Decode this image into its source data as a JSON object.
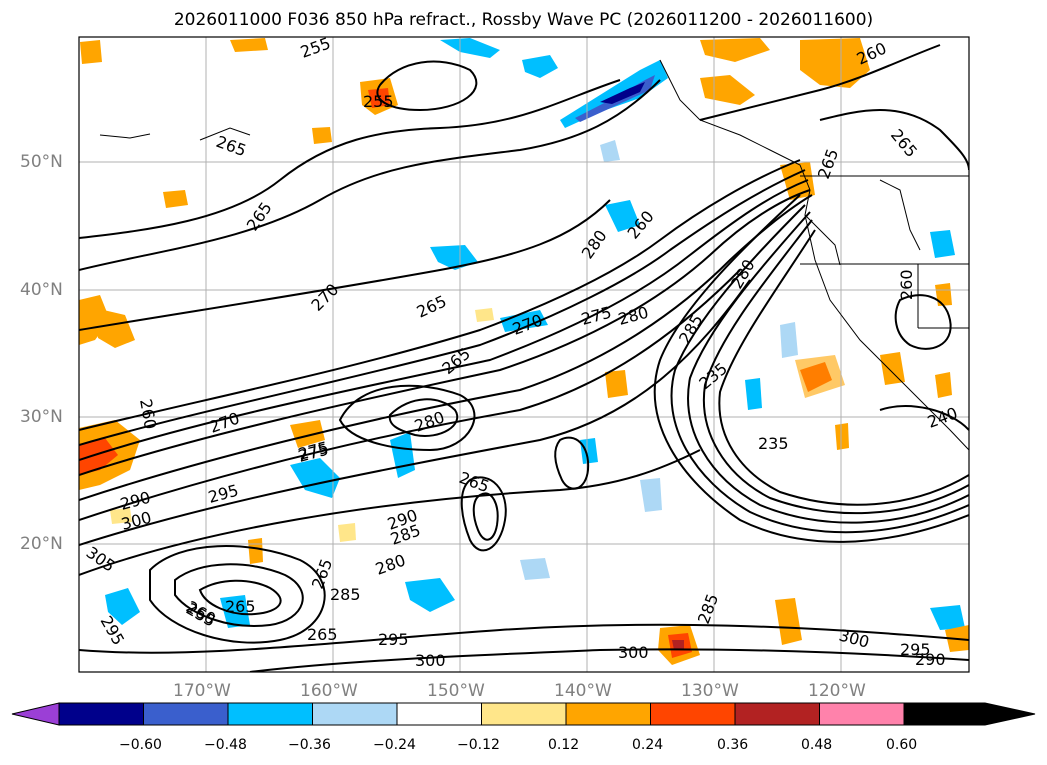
{
  "title": "2026011000 F036 850 hPa refract., Rossby Wave PC (2026011200 - 2026011600)",
  "lat_labels": [
    "50°N",
    "40°N",
    "30°N",
    "20°N"
  ],
  "lon_labels": [
    "170°W",
    "160°W",
    "150°W",
    "140°W",
    "130°W",
    "120°W"
  ],
  "colorbar": {
    "ticks": [
      "−0.60",
      "−0.48",
      "−0.36",
      "−0.24",
      "−0.12",
      "0.12",
      "0.24",
      "0.36",
      "0.48",
      "0.60"
    ],
    "colors": [
      "#9b3fd6",
      "#00008b",
      "#3a5fcd",
      "#00bfff",
      "#add8f5",
      "#ffffff",
      "#ffe68a",
      "#ffa500",
      "#ff4500",
      "#b22222",
      "#ff82ab"
    ]
  },
  "contour_labels": [
    "255",
    "260",
    "265",
    "265",
    "255",
    "265",
    "270",
    "265",
    "270",
    "275",
    "280",
    "280",
    "260",
    "280",
    "265",
    "260",
    "285",
    "235",
    "235",
    "240",
    "265",
    "270",
    "275",
    "290",
    "295",
    "300",
    "305",
    "260",
    "280",
    "290",
    "285",
    "280",
    "285",
    "265",
    "255",
    "295",
    "265",
    "275",
    "295",
    "300",
    "300",
    "300",
    "285",
    "295",
    "290",
    "265",
    "265",
    "260"
  ]
}
